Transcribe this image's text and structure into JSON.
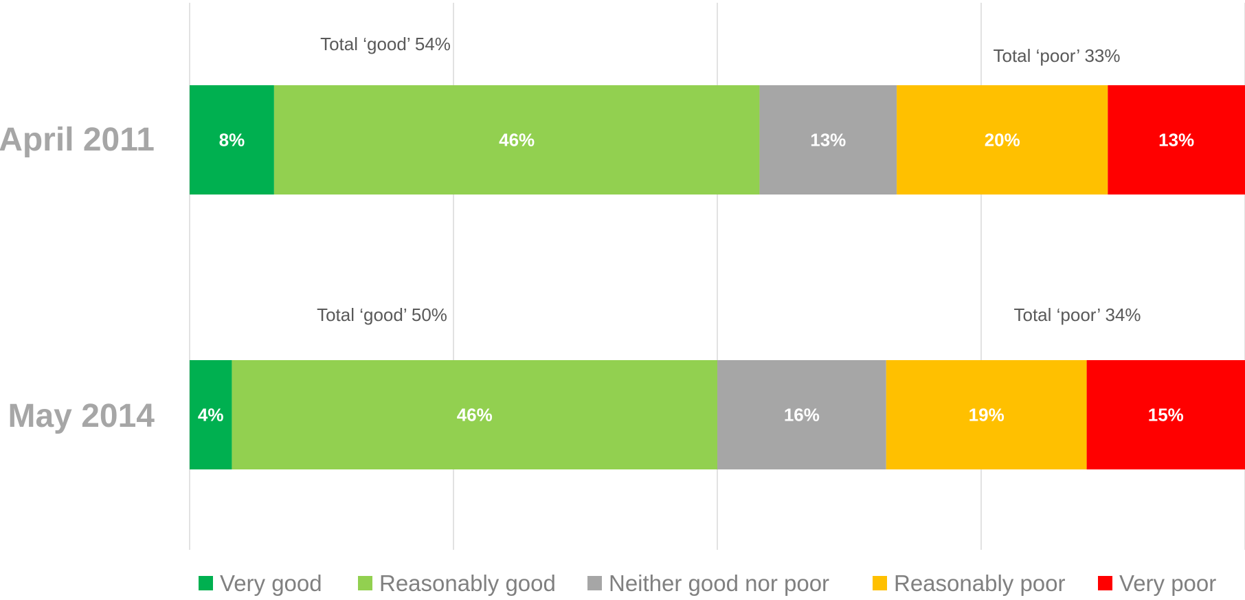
{
  "chart_data": {
    "type": "bar",
    "orientation": "horizontal",
    "stacked": true,
    "categories": [
      "April 2011",
      "May 2014"
    ],
    "series": [
      {
        "name": "Very good",
        "values": [
          8,
          4
        ],
        "color": "#00b050"
      },
      {
        "name": "Reasonably good",
        "values": [
          46,
          46
        ],
        "color": "#92d050"
      },
      {
        "name": "Neither good nor poor",
        "values": [
          13,
          16
        ],
        "color": "#a6a6a6"
      },
      {
        "name": "Reasonably poor",
        "values": [
          20,
          19
        ],
        "color": "#ffc000"
      },
      {
        "name": "Very poor",
        "values": [
          13,
          15
        ],
        "color": "#ff0000"
      }
    ],
    "data_labels": [
      [
        "8%",
        "46%",
        "13%",
        "20%",
        "13%"
      ],
      [
        "4%",
        "46%",
        "16%",
        "19%",
        "15%"
      ]
    ],
    "annotations": [
      {
        "category": "April 2011",
        "good_text": "Total ‘good’ 54%",
        "poor_text": "Total ‘poor’ 33%"
      },
      {
        "category": "May 2014",
        "good_text": "Total ‘good’ 50%",
        "poor_text": "Total ‘poor’ 34%"
      }
    ],
    "xlim": [
      0,
      100
    ],
    "grid": true,
    "legend_position": "bottom"
  }
}
